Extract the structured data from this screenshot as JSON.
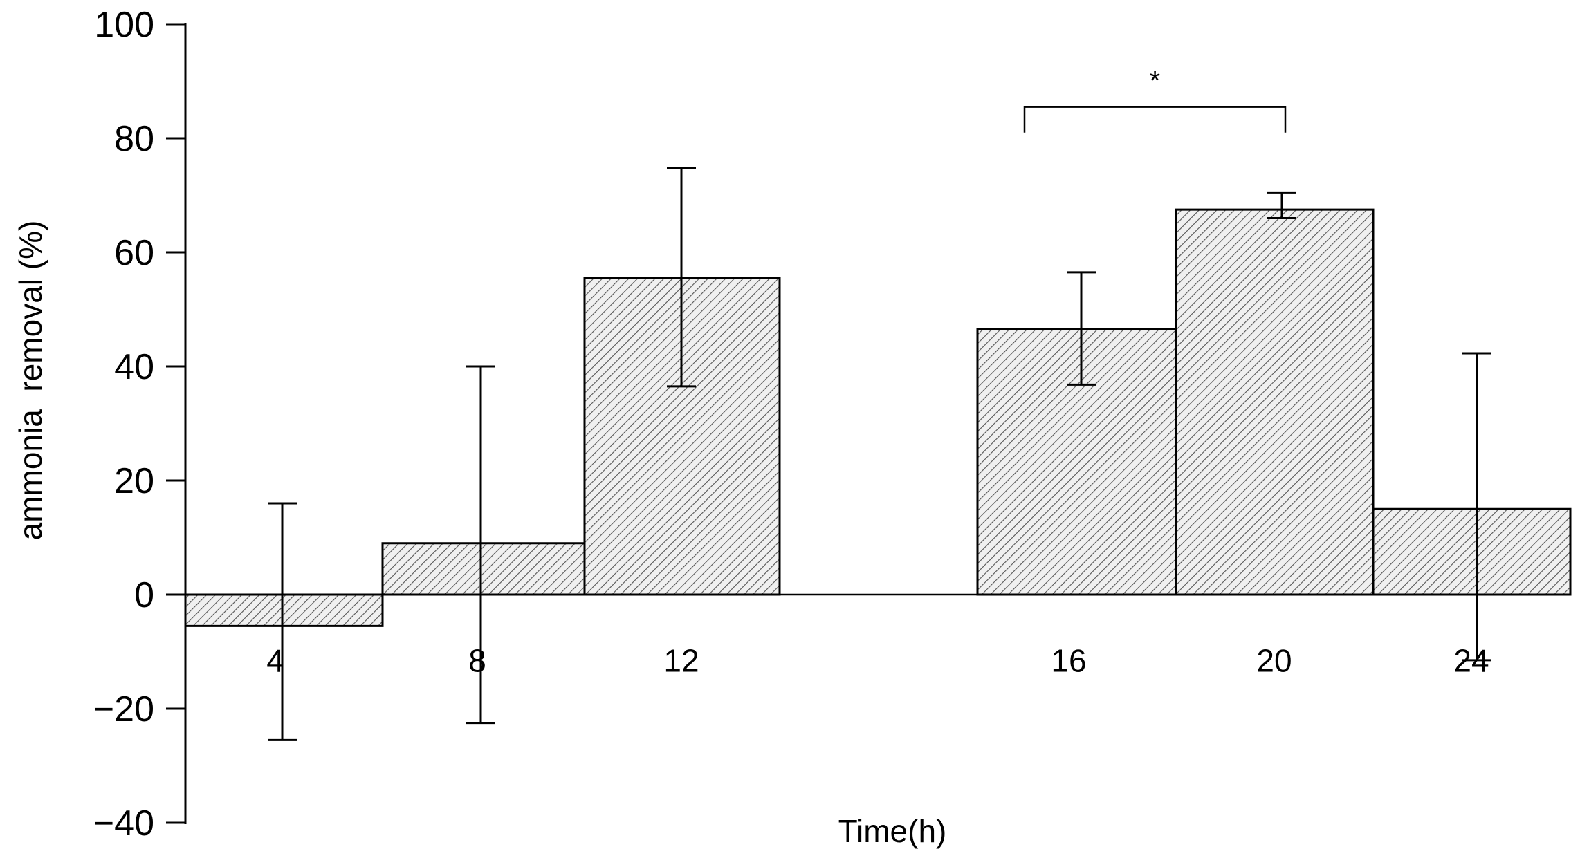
{
  "chart_data": {
    "type": "bar",
    "title": "",
    "xlabel": "Time(h)",
    "ylabel": "ammonia  removal (%)",
    "ylim": [
      -40,
      100
    ],
    "yticks": [
      -40,
      -20,
      0,
      20,
      40,
      60,
      80,
      100
    ],
    "ytick_labels": [
      "−40",
      "−20",
      "0",
      "20",
      "40",
      "60",
      "80",
      "100"
    ],
    "categories": [
      "4",
      "8",
      "12",
      "16",
      "20",
      "24"
    ],
    "values": [
      -5.5,
      9,
      55.5,
      46.5,
      67.5,
      15
    ],
    "error_upper": [
      16,
      40,
      74.8,
      56.5,
      70.5,
      42.3
    ],
    "error_lower": [
      -25.5,
      -22.5,
      36.5,
      36.8,
      66,
      -11.5
    ],
    "grid": false,
    "legend": "none",
    "fill": "diagonal-hatch",
    "significance": {
      "from": "16",
      "to": "20",
      "label": "*"
    },
    "colors": {
      "bar_fill": "#e6e6e6",
      "hatch": "#555555",
      "stroke": "#000000"
    }
  }
}
